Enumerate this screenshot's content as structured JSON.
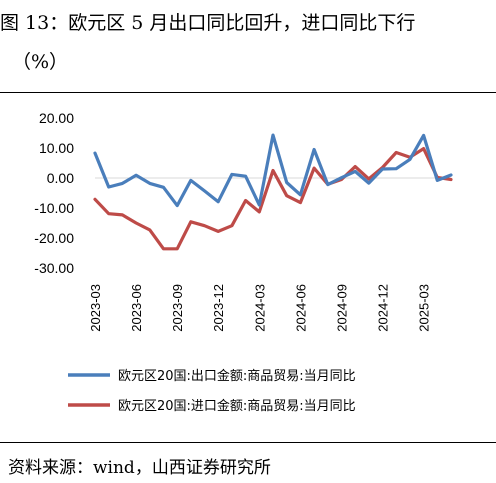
{
  "caption": {
    "line1": "图 13：欧元区 5 月出口同比回升，进口同比下行",
    "line2": "（%）"
  },
  "source": "资料来源：wind，山西证券研究所",
  "chart_data": {
    "type": "line",
    "title": "",
    "xlabel": "",
    "ylabel": "",
    "ylim": [
      -30,
      20
    ],
    "y_ticks": [
      "20.00",
      "10.00",
      "0.00",
      "-10.00",
      "-20.00",
      "-30.00"
    ],
    "grid": false,
    "legend_position": "bottom",
    "x": [
      "2023-03",
      "2023-04",
      "2023-05",
      "2023-06",
      "2023-07",
      "2023-08",
      "2023-09",
      "2023-10",
      "2023-11",
      "2023-12",
      "2024-01",
      "2024-02",
      "2024-03",
      "2024-04",
      "2024-05",
      "2024-06",
      "2024-07",
      "2024-08",
      "2024-09",
      "2024-10",
      "2024-11",
      "2024-12",
      "2025-01",
      "2025-02",
      "2025-03",
      "2025-04",
      "2025-05"
    ],
    "x_tick_labels": [
      "2023-03",
      "2023-06",
      "2023-09",
      "2023-12",
      "2024-03",
      "2024-06",
      "2024-09",
      "2024-12",
      "2025-03"
    ],
    "series": [
      {
        "name": "欧元区20国:出口金额:商品贸易:当月同比",
        "color": "#4a7ebb",
        "values": [
          8.3,
          -3.0,
          -1.8,
          0.9,
          -1.8,
          -3.1,
          -9.2,
          -0.8,
          -4.3,
          -7.9,
          1.2,
          0.6,
          -9.0,
          14.3,
          -1.5,
          -5.6,
          9.5,
          -2.2,
          0.1,
          2.2,
          -1.7,
          3.0,
          3.1,
          6.2,
          14.2,
          -0.8,
          1.0
        ]
      },
      {
        "name": "欧元区20国:进口金额:商品贸易:当月同比",
        "color": "#be4b48",
        "values": [
          -7.1,
          -11.9,
          -12.3,
          -15.0,
          -17.3,
          -23.6,
          -23.6,
          -14.6,
          -15.9,
          -17.8,
          -15.9,
          -7.5,
          -11.3,
          2.5,
          -5.9,
          -8.2,
          3.3,
          -2.1,
          -0.5,
          3.8,
          -0.3,
          3.5,
          8.5,
          6.9,
          9.8,
          0.2,
          -0.5
        ]
      }
    ]
  }
}
